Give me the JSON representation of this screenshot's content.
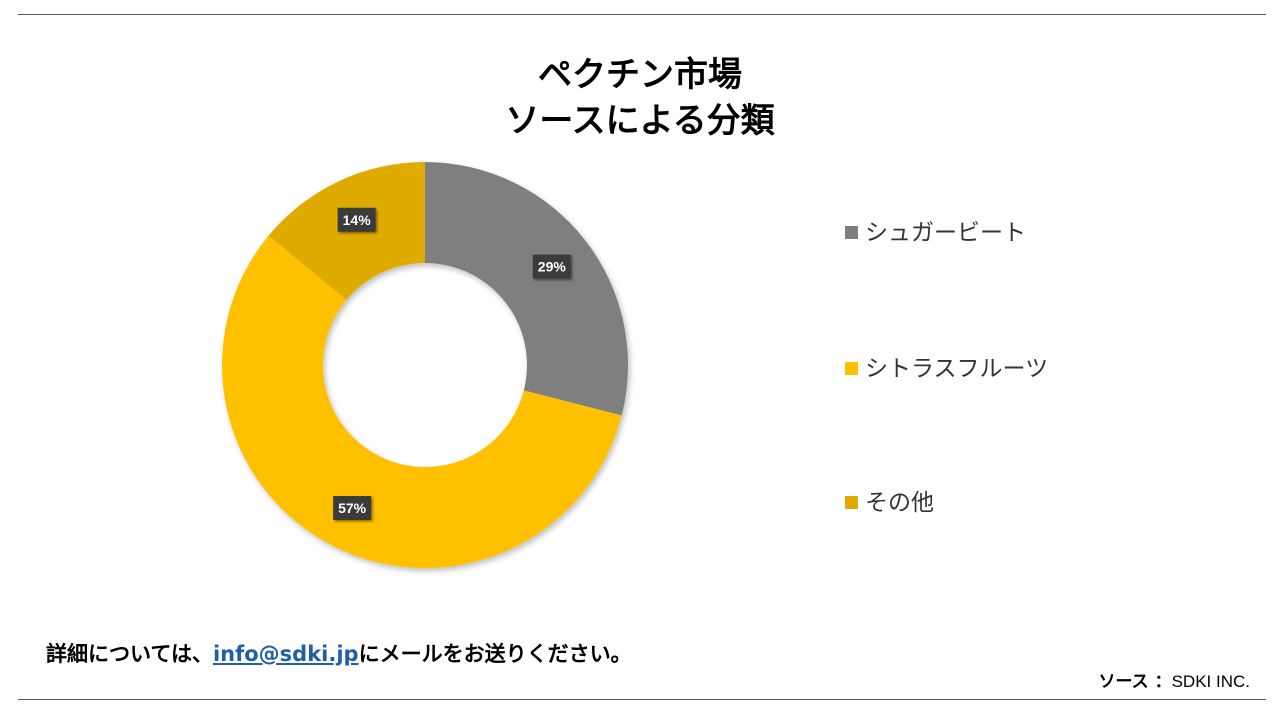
{
  "title": {
    "line1": "ペクチン市場",
    "line2": "ソースによる分類"
  },
  "chart_data": {
    "type": "pie",
    "variant": "donut",
    "categories": [
      "シュガービート",
      "シトラスフルーツ",
      "その他"
    ],
    "values": [
      29,
      57,
      14
    ],
    "labels": [
      "29%",
      "57%",
      "14%"
    ],
    "colors": [
      "#7f7f7f",
      "#ffc000",
      "#e0ab00"
    ],
    "legend_position": "right"
  },
  "footer": {
    "prefix": "詳細については、",
    "email": "info@sdki.jp",
    "suffix": "にメールをお送りください。"
  },
  "source": {
    "label": "ソース ：",
    "value": "SDKI INC."
  }
}
